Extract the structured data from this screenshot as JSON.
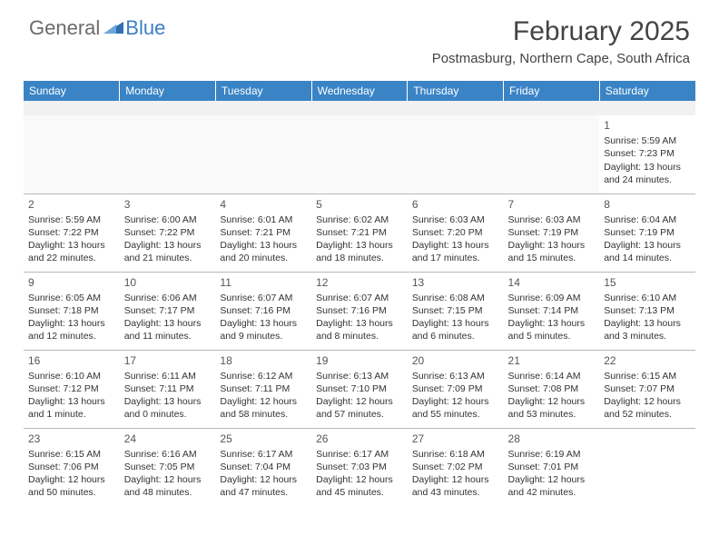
{
  "logo": {
    "text_general": "General",
    "text_blue": "Blue"
  },
  "header": {
    "month_title": "February 2025",
    "location": "Postmasburg, Northern Cape, South Africa"
  },
  "calendar": {
    "header_bg": "#3a84c6",
    "header_fg": "#ffffff",
    "border_color": "#b8b8b8",
    "blank_bg": "#f1f1f1",
    "font_size_cell": 10.5,
    "font_size_daynum": 12,
    "day_headers": [
      "Sunday",
      "Monday",
      "Tuesday",
      "Wednesday",
      "Thursday",
      "Friday",
      "Saturday"
    ],
    "weeks": [
      [
        null,
        null,
        null,
        null,
        null,
        null,
        {
          "n": "1",
          "sr": "Sunrise: 5:59 AM",
          "ss": "Sunset: 7:23 PM",
          "dl": "Daylight: 13 hours and 24 minutes."
        }
      ],
      [
        {
          "n": "2",
          "sr": "Sunrise: 5:59 AM",
          "ss": "Sunset: 7:22 PM",
          "dl": "Daylight: 13 hours and 22 minutes."
        },
        {
          "n": "3",
          "sr": "Sunrise: 6:00 AM",
          "ss": "Sunset: 7:22 PM",
          "dl": "Daylight: 13 hours and 21 minutes."
        },
        {
          "n": "4",
          "sr": "Sunrise: 6:01 AM",
          "ss": "Sunset: 7:21 PM",
          "dl": "Daylight: 13 hours and 20 minutes."
        },
        {
          "n": "5",
          "sr": "Sunrise: 6:02 AM",
          "ss": "Sunset: 7:21 PM",
          "dl": "Daylight: 13 hours and 18 minutes."
        },
        {
          "n": "6",
          "sr": "Sunrise: 6:03 AM",
          "ss": "Sunset: 7:20 PM",
          "dl": "Daylight: 13 hours and 17 minutes."
        },
        {
          "n": "7",
          "sr": "Sunrise: 6:03 AM",
          "ss": "Sunset: 7:19 PM",
          "dl": "Daylight: 13 hours and 15 minutes."
        },
        {
          "n": "8",
          "sr": "Sunrise: 6:04 AM",
          "ss": "Sunset: 7:19 PM",
          "dl": "Daylight: 13 hours and 14 minutes."
        }
      ],
      [
        {
          "n": "9",
          "sr": "Sunrise: 6:05 AM",
          "ss": "Sunset: 7:18 PM",
          "dl": "Daylight: 13 hours and 12 minutes."
        },
        {
          "n": "10",
          "sr": "Sunrise: 6:06 AM",
          "ss": "Sunset: 7:17 PM",
          "dl": "Daylight: 13 hours and 11 minutes."
        },
        {
          "n": "11",
          "sr": "Sunrise: 6:07 AM",
          "ss": "Sunset: 7:16 PM",
          "dl": "Daylight: 13 hours and 9 minutes."
        },
        {
          "n": "12",
          "sr": "Sunrise: 6:07 AM",
          "ss": "Sunset: 7:16 PM",
          "dl": "Daylight: 13 hours and 8 minutes."
        },
        {
          "n": "13",
          "sr": "Sunrise: 6:08 AM",
          "ss": "Sunset: 7:15 PM",
          "dl": "Daylight: 13 hours and 6 minutes."
        },
        {
          "n": "14",
          "sr": "Sunrise: 6:09 AM",
          "ss": "Sunset: 7:14 PM",
          "dl": "Daylight: 13 hours and 5 minutes."
        },
        {
          "n": "15",
          "sr": "Sunrise: 6:10 AM",
          "ss": "Sunset: 7:13 PM",
          "dl": "Daylight: 13 hours and 3 minutes."
        }
      ],
      [
        {
          "n": "16",
          "sr": "Sunrise: 6:10 AM",
          "ss": "Sunset: 7:12 PM",
          "dl": "Daylight: 13 hours and 1 minute."
        },
        {
          "n": "17",
          "sr": "Sunrise: 6:11 AM",
          "ss": "Sunset: 7:11 PM",
          "dl": "Daylight: 13 hours and 0 minutes."
        },
        {
          "n": "18",
          "sr": "Sunrise: 6:12 AM",
          "ss": "Sunset: 7:11 PM",
          "dl": "Daylight: 12 hours and 58 minutes."
        },
        {
          "n": "19",
          "sr": "Sunrise: 6:13 AM",
          "ss": "Sunset: 7:10 PM",
          "dl": "Daylight: 12 hours and 57 minutes."
        },
        {
          "n": "20",
          "sr": "Sunrise: 6:13 AM",
          "ss": "Sunset: 7:09 PM",
          "dl": "Daylight: 12 hours and 55 minutes."
        },
        {
          "n": "21",
          "sr": "Sunrise: 6:14 AM",
          "ss": "Sunset: 7:08 PM",
          "dl": "Daylight: 12 hours and 53 minutes."
        },
        {
          "n": "22",
          "sr": "Sunrise: 6:15 AM",
          "ss": "Sunset: 7:07 PM",
          "dl": "Daylight: 12 hours and 52 minutes."
        }
      ],
      [
        {
          "n": "23",
          "sr": "Sunrise: 6:15 AM",
          "ss": "Sunset: 7:06 PM",
          "dl": "Daylight: 12 hours and 50 minutes."
        },
        {
          "n": "24",
          "sr": "Sunrise: 6:16 AM",
          "ss": "Sunset: 7:05 PM",
          "dl": "Daylight: 12 hours and 48 minutes."
        },
        {
          "n": "25",
          "sr": "Sunrise: 6:17 AM",
          "ss": "Sunset: 7:04 PM",
          "dl": "Daylight: 12 hours and 47 minutes."
        },
        {
          "n": "26",
          "sr": "Sunrise: 6:17 AM",
          "ss": "Sunset: 7:03 PM",
          "dl": "Daylight: 12 hours and 45 minutes."
        },
        {
          "n": "27",
          "sr": "Sunrise: 6:18 AM",
          "ss": "Sunset: 7:02 PM",
          "dl": "Daylight: 12 hours and 43 minutes."
        },
        {
          "n": "28",
          "sr": "Sunrise: 6:19 AM",
          "ss": "Sunset: 7:01 PM",
          "dl": "Daylight: 12 hours and 42 minutes."
        },
        null
      ]
    ]
  }
}
